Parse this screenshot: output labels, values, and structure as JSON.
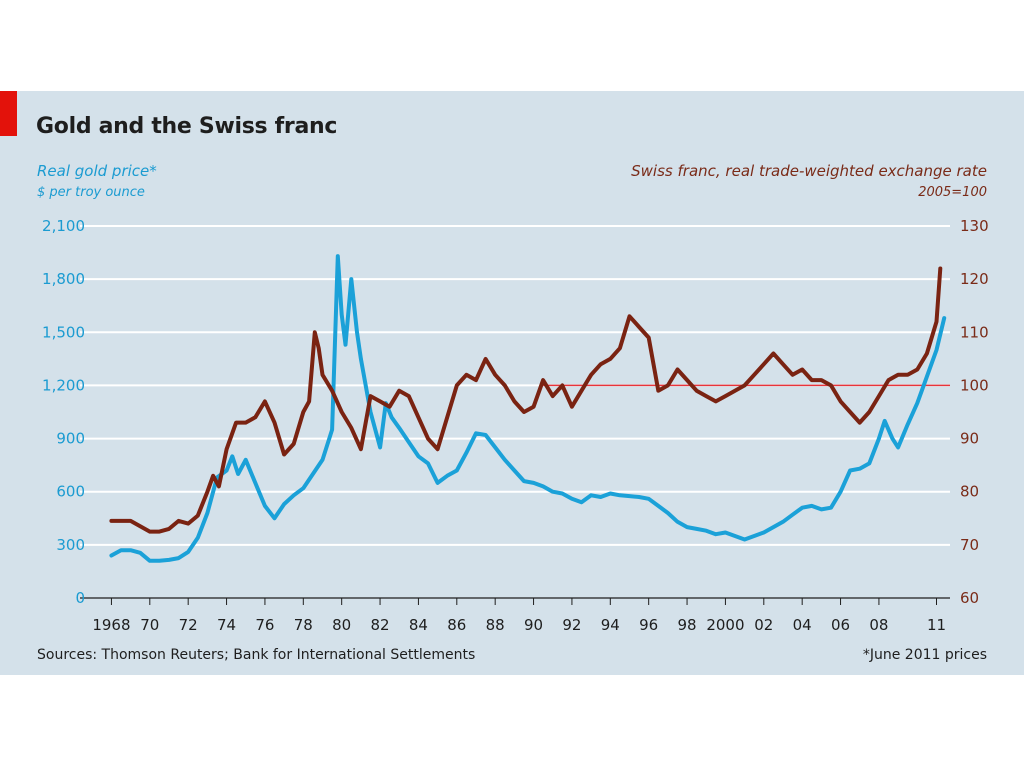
{
  "chart_data": {
    "type": "line",
    "title": "Gold and the Swiss franc",
    "left_axis": {
      "label": "Real gold price*",
      "unit": "$ per troy ounce",
      "range": [
        0,
        2100
      ],
      "ticks": [
        "0",
        "300",
        "600",
        "900",
        "1,200",
        "1,500",
        "1,800",
        "2,100"
      ],
      "tick_values": [
        0,
        300,
        600,
        900,
        1200,
        1500,
        1800,
        2100
      ]
    },
    "right_axis": {
      "label": "Swiss franc, real trade-weighted exchange rate",
      "unit": "2005=100",
      "range": [
        60,
        130
      ],
      "ticks": [
        "60",
        "70",
        "80",
        "90",
        "100",
        "110",
        "120",
        "130"
      ],
      "tick_values": [
        60,
        70,
        80,
        90,
        100,
        110,
        120,
        130
      ]
    },
    "x_axis": {
      "range": [
        1967.3,
        2011.6
      ],
      "tick_labels": [
        "1968",
        "70",
        "72",
        "74",
        "76",
        "78",
        "80",
        "82",
        "84",
        "86",
        "88",
        "90",
        "92",
        "94",
        "96",
        "98",
        "2000",
        "02",
        "04",
        "06",
        "08",
        "11"
      ],
      "tick_values": [
        1968,
        1970,
        1972,
        1974,
        1976,
        1978,
        1980,
        1982,
        1984,
        1986,
        1988,
        1990,
        1992,
        1994,
        1996,
        1998,
        2000,
        2002,
        2004,
        2006,
        2008,
        2011
      ]
    },
    "reference_line": {
      "axis": "right",
      "value": 100,
      "color": "#e8343b"
    },
    "grid": true,
    "series": [
      {
        "name": "Real gold price*",
        "axis": "left",
        "color": "#1ba1d8",
        "x": [
          1968.0,
          1968.5,
          1969.0,
          1969.5,
          1970.0,
          1970.5,
          1971.0,
          1971.5,
          1972.0,
          1972.5,
          1973.0,
          1973.5,
          1974.0,
          1974.3,
          1974.6,
          1975.0,
          1975.5,
          1976.0,
          1976.5,
          1977.0,
          1977.5,
          1978.0,
          1978.5,
          1979.0,
          1979.5,
          1979.8,
          1980.0,
          1980.2,
          1980.5,
          1980.8,
          1981.0,
          1981.5,
          1982.0,
          1982.3,
          1982.6,
          1983.0,
          1983.5,
          1984.0,
          1984.5,
          1985.0,
          1985.5,
          1986.0,
          1986.5,
          1987.0,
          1987.5,
          1988.0,
          1988.5,
          1989.0,
          1989.5,
          1990.0,
          1990.5,
          1991.0,
          1991.5,
          1992.0,
          1992.5,
          1993.0,
          1993.5,
          1994.0,
          1994.5,
          1995.0,
          1995.5,
          1996.0,
          1996.5,
          1997.0,
          1997.5,
          1998.0,
          1998.5,
          1999.0,
          1999.5,
          2000.0,
          2000.5,
          2001.0,
          2001.5,
          2002.0,
          2002.5,
          2003.0,
          2003.5,
          2004.0,
          2004.5,
          2005.0,
          2005.5,
          2006.0,
          2006.5,
          2007.0,
          2007.5,
          2008.0,
          2008.3,
          2008.7,
          2009.0,
          2009.5,
          2010.0,
          2010.5,
          2011.0,
          2011.4
        ],
        "y": [
          240,
          270,
          270,
          255,
          210,
          210,
          215,
          225,
          260,
          340,
          480,
          680,
          720,
          800,
          700,
          780,
          650,
          520,
          450,
          530,
          580,
          620,
          700,
          780,
          950,
          1930,
          1600,
          1430,
          1800,
          1500,
          1350,
          1050,
          850,
          1100,
          1020,
          960,
          880,
          800,
          760,
          650,
          690,
          720,
          820,
          930,
          920,
          850,
          780,
          720,
          660,
          650,
          630,
          600,
          590,
          560,
          540,
          580,
          570,
          590,
          580,
          575,
          570,
          560,
          520,
          480,
          430,
          400,
          390,
          380,
          360,
          370,
          350,
          330,
          350,
          370,
          400,
          430,
          470,
          510,
          520,
          500,
          510,
          600,
          720,
          730,
          760,
          900,
          1000,
          900,
          850,
          980,
          1100,
          1250,
          1400,
          1580
        ]
      },
      {
        "name": "Swiss franc, real trade-weighted exchange rate",
        "axis": "right",
        "color": "#7a2312",
        "x": [
          1968.0,
          1968.5,
          1969.0,
          1969.5,
          1970.0,
          1970.5,
          1971.0,
          1971.5,
          1972.0,
          1972.5,
          1973.0,
          1973.3,
          1973.6,
          1974.0,
          1974.5,
          1975.0,
          1975.5,
          1976.0,
          1976.5,
          1977.0,
          1977.5,
          1978.0,
          1978.3,
          1978.6,
          1978.8,
          1979.0,
          1979.5,
          1980.0,
          1980.5,
          1981.0,
          1981.5,
          1982.0,
          1982.5,
          1983.0,
          1983.5,
          1984.0,
          1984.5,
          1985.0,
          1985.5,
          1986.0,
          1986.5,
          1987.0,
          1987.5,
          1988.0,
          1988.5,
          1989.0,
          1989.5,
          1990.0,
          1990.5,
          1991.0,
          1991.5,
          1992.0,
          1992.5,
          1993.0,
          1993.5,
          1994.0,
          1994.5,
          1995.0,
          1995.5,
          1996.0,
          1996.5,
          1997.0,
          1997.5,
          1998.0,
          1998.5,
          1999.0,
          1999.5,
          2000.0,
          2000.5,
          2001.0,
          2001.5,
          2002.0,
          2002.5,
          2003.0,
          2003.5,
          2004.0,
          2004.5,
          2005.0,
          2005.5,
          2006.0,
          2006.5,
          2007.0,
          2007.5,
          2008.0,
          2008.5,
          2009.0,
          2009.5,
          2010.0,
          2010.5,
          2011.0,
          2011.2
        ],
        "y": [
          74.5,
          74.5,
          74.5,
          73.5,
          72.5,
          72.5,
          73,
          74.5,
          74,
          75.5,
          80,
          83,
          81,
          88,
          93,
          93,
          94,
          97,
          93,
          87,
          89,
          95,
          97,
          110,
          107,
          102,
          99,
          95,
          92,
          88,
          98,
          97,
          96,
          99,
          98,
          94,
          90,
          88,
          94,
          100,
          102,
          101,
          105,
          102,
          100,
          97,
          95,
          96,
          101,
          98,
          100,
          96,
          99,
          102,
          104,
          105,
          107,
          113,
          111,
          109,
          99,
          100,
          103,
          101,
          99,
          98,
          97,
          98,
          99,
          100,
          102,
          104,
          106,
          104,
          102,
          103,
          101,
          101,
          100,
          97,
          95,
          93,
          95,
          98,
          101,
          102,
          102,
          103,
          106,
          112,
          122
        ]
      }
    ]
  },
  "footer": {
    "sources": "Sources: Thomson Reuters; Bank for International Settlements",
    "note": "*June 2011 prices"
  }
}
